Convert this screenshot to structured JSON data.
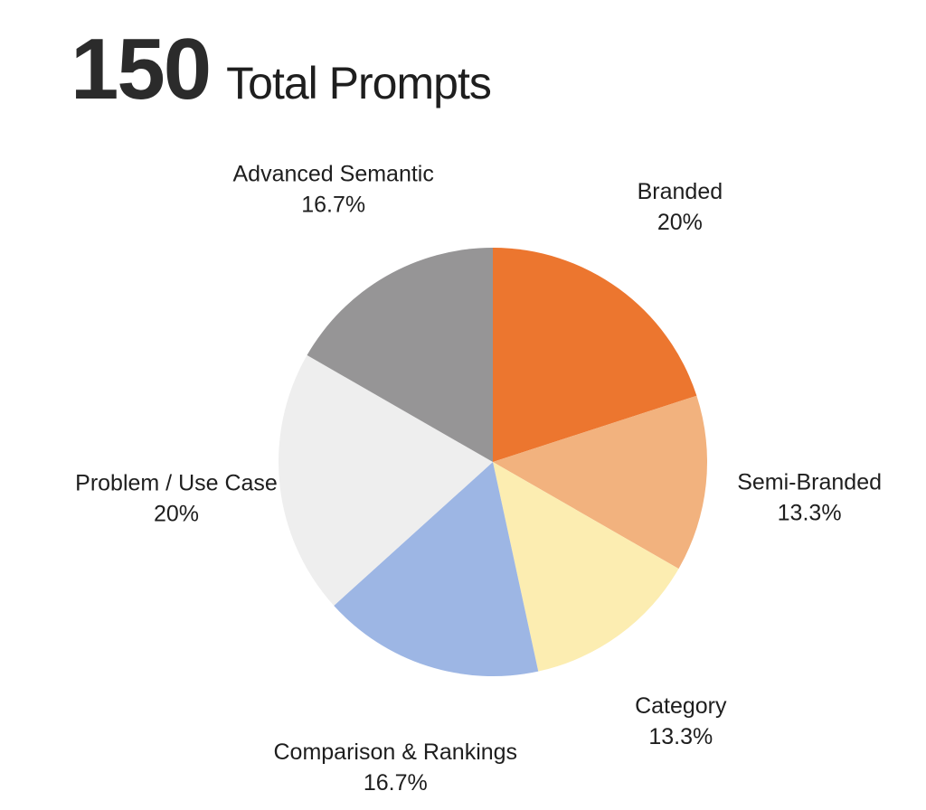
{
  "header": {
    "total": "150",
    "total_label": "Total Prompts"
  },
  "chart_data": {
    "type": "pie",
    "start_angle_deg": 0,
    "direction": "clockwise",
    "legend": "none",
    "slices": [
      {
        "label": "Branded",
        "value": 20,
        "value_label": "20%",
        "color": "#EC762F"
      },
      {
        "label": "Semi-Branded",
        "value": 13.3,
        "value_label": "13.3%",
        "color": "#F2B27E"
      },
      {
        "label": "Category",
        "value": 13.3,
        "value_label": "13.3%",
        "color": "#FCEDB1"
      },
      {
        "label": "Comparison & Rankings",
        "value": 16.7,
        "value_label": "16.7%",
        "color": "#9DB6E4"
      },
      {
        "label": "Problem / Use Case",
        "value": 20,
        "value_label": "20%",
        "color": "#EEEEEE"
      },
      {
        "label": "Advanced Semantic",
        "value": 16.7,
        "value_label": "16.7%",
        "color": "#969596"
      }
    ]
  }
}
